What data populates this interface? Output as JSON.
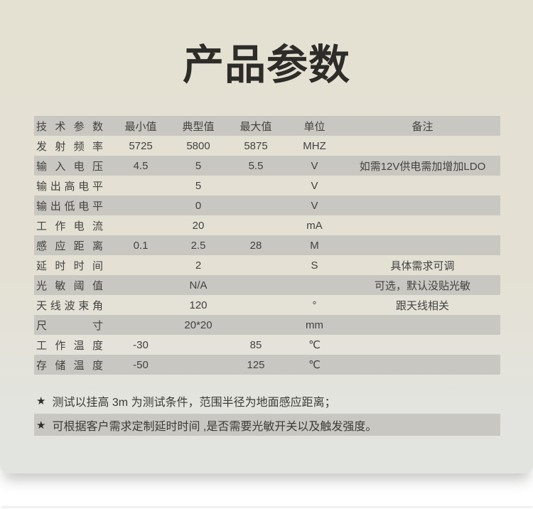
{
  "page": {
    "title": "产品参数"
  },
  "colors": {
    "card_background_top": "#e4e1d3",
    "card_background_bottom": "#e2e4e0",
    "row_shade": "#c9c7c1",
    "table_text": "#434240",
    "title_text": "#2d2c28"
  },
  "table": {
    "rows": [
      {
        "cells": [
          "技术参数",
          "最小值",
          "典型值",
          "最大值",
          "单位",
          "备注"
        ]
      },
      {
        "cells": [
          "发射频率",
          "5725",
          "5800",
          "5875",
          "MHZ",
          ""
        ]
      },
      {
        "cells": [
          "输入电压",
          "4.5",
          "5",
          "5.5",
          "V",
          "如需12V供电需加增加LDO"
        ]
      },
      {
        "cells": [
          "输出高电平",
          "",
          "5",
          "",
          "V",
          ""
        ]
      },
      {
        "cells": [
          "输出低电平",
          "",
          "0",
          "",
          "V",
          ""
        ]
      },
      {
        "cells": [
          "工作电流",
          "",
          "20",
          "",
          "mA",
          ""
        ]
      },
      {
        "cells": [
          "感应距离",
          "0.1",
          "2.5",
          "28",
          "M",
          ""
        ]
      },
      {
        "cells": [
          "延时时间",
          "",
          "2",
          "",
          "S",
          "具体需求可调"
        ]
      },
      {
        "cells": [
          "光敏阈值",
          "",
          "N/A",
          "",
          "",
          "可选，默认没贴光敏"
        ]
      },
      {
        "cells": [
          "天线波束角",
          "",
          "120",
          "",
          "°",
          "跟天线相关"
        ]
      },
      {
        "cells": [
          "尺寸",
          "",
          "20*20",
          "",
          "mm",
          ""
        ]
      },
      {
        "cells": [
          "工作温度",
          "-30",
          "",
          "85",
          "℃",
          ""
        ]
      },
      {
        "cells": [
          "存储温度",
          "-50",
          "",
          "125",
          "℃",
          ""
        ]
      }
    ]
  },
  "notes": [
    {
      "bullet": "★",
      "text": "测试以挂高 3m 为测试条件，范围半径为地面感应距离；",
      "highlighted": false
    },
    {
      "bullet": "★",
      "text": "可根据客户需求定制延时时间 ,是否需要光敏开关以及触发强度。",
      "highlighted": true
    }
  ]
}
